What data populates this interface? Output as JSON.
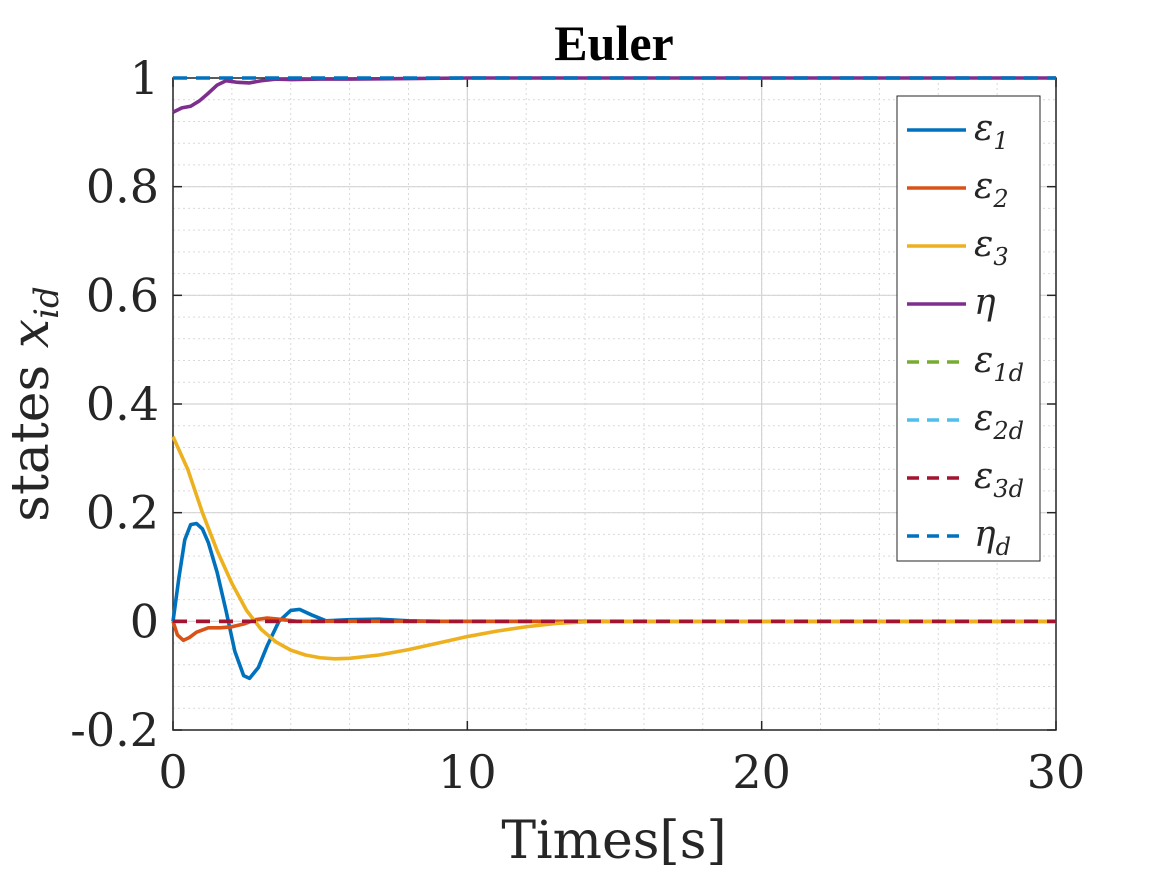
{
  "chart_data": {
    "type": "line",
    "title": "Euler",
    "xlabel": "Times[s]",
    "ylabel_text": "states ",
    "ylabel_math": "x",
    "ylabel_sub": "id",
    "xlim": [
      0,
      30
    ],
    "ylim": [
      -0.2,
      1
    ],
    "xticks": [
      0,
      10,
      20,
      30
    ],
    "xtick_labels": [
      "0",
      "10",
      "20",
      "30"
    ],
    "yticks": [
      -0.2,
      0,
      0.2,
      0.4,
      0.6,
      0.8,
      1
    ],
    "ytick_labels": [
      "-0.2",
      "0",
      "0.2",
      "0.4",
      "0.6",
      "0.8",
      "1"
    ],
    "grid": true,
    "minor_grid": true,
    "legend_position": "top-right",
    "series": [
      {
        "name": "ε",
        "sub": "1",
        "color": "#0072BD",
        "dash": false,
        "points": [
          [
            0,
            0
          ],
          [
            0.2,
            0.08
          ],
          [
            0.4,
            0.15
          ],
          [
            0.6,
            0.178
          ],
          [
            0.8,
            0.18
          ],
          [
            1.0,
            0.17
          ],
          [
            1.2,
            0.145
          ],
          [
            1.5,
            0.09
          ],
          [
            1.8,
            0.02
          ],
          [
            2.1,
            -0.055
          ],
          [
            2.4,
            -0.1
          ],
          [
            2.6,
            -0.105
          ],
          [
            2.9,
            -0.085
          ],
          [
            3.2,
            -0.045
          ],
          [
            3.6,
            0.0
          ],
          [
            4.0,
            0.02
          ],
          [
            4.3,
            0.022
          ],
          [
            4.7,
            0.012
          ],
          [
            5.2,
            0.001
          ],
          [
            6,
            0.003
          ],
          [
            7,
            0.004
          ],
          [
            8,
            0.001
          ],
          [
            9,
            0.0
          ],
          [
            30,
            0.0
          ]
        ]
      },
      {
        "name": "ε",
        "sub": "2",
        "color": "#D95319",
        "dash": false,
        "points": [
          [
            0,
            0
          ],
          [
            0.15,
            -0.025
          ],
          [
            0.35,
            -0.035
          ],
          [
            0.55,
            -0.03
          ],
          [
            0.8,
            -0.02
          ],
          [
            1.2,
            -0.012
          ],
          [
            1.6,
            -0.012
          ],
          [
            2.0,
            -0.01
          ],
          [
            2.4,
            -0.005
          ],
          [
            2.8,
            0.003
          ],
          [
            3.2,
            0.006
          ],
          [
            3.6,
            0.004
          ],
          [
            4.2,
            0.0
          ],
          [
            5,
            0.0
          ],
          [
            30,
            0.0
          ]
        ]
      },
      {
        "name": "ε",
        "sub": "3",
        "color": "#EDB120",
        "dash": false,
        "points": [
          [
            0,
            0.34
          ],
          [
            0.5,
            0.28
          ],
          [
            1.0,
            0.2
          ],
          [
            1.5,
            0.13
          ],
          [
            2.0,
            0.07
          ],
          [
            2.5,
            0.02
          ],
          [
            3.0,
            -0.015
          ],
          [
            3.5,
            -0.038
          ],
          [
            4.0,
            -0.053
          ],
          [
            4.5,
            -0.062
          ],
          [
            5.0,
            -0.067
          ],
          [
            5.5,
            -0.069
          ],
          [
            6.0,
            -0.068
          ],
          [
            7,
            -0.062
          ],
          [
            8,
            -0.052
          ],
          [
            9,
            -0.04
          ],
          [
            10,
            -0.028
          ],
          [
            11,
            -0.018
          ],
          [
            12,
            -0.01
          ],
          [
            13,
            -0.004
          ],
          [
            14,
            -0.001
          ],
          [
            15,
            0.0
          ],
          [
            30,
            0.0
          ]
        ]
      },
      {
        "name": "η",
        "sub": "",
        "color": "#7E2F8E",
        "dash": false,
        "points": [
          [
            0,
            0.937
          ],
          [
            0.3,
            0.945
          ],
          [
            0.6,
            0.948
          ],
          [
            0.9,
            0.958
          ],
          [
            1.2,
            0.972
          ],
          [
            1.5,
            0.987
          ],
          [
            1.8,
            0.995
          ],
          [
            2.2,
            0.992
          ],
          [
            2.6,
            0.991
          ],
          [
            3.0,
            0.995
          ],
          [
            3.5,
            0.998
          ],
          [
            4,
            0.997
          ],
          [
            5,
            0.998
          ],
          [
            6,
            0.998
          ],
          [
            8,
            0.999
          ],
          [
            10,
            1.0
          ],
          [
            30,
            1.0
          ]
        ]
      },
      {
        "name": "ε",
        "sub": "1d",
        "color": "#77AC30",
        "dash": true,
        "points": [
          [
            0,
            0
          ],
          [
            30,
            0
          ]
        ]
      },
      {
        "name": "ε",
        "sub": "2d",
        "color": "#4DBEEE",
        "dash": true,
        "points": [
          [
            0,
            0
          ],
          [
            30,
            0
          ]
        ]
      },
      {
        "name": "ε",
        "sub": "3d",
        "color": "#A2142F",
        "dash": true,
        "points": [
          [
            0,
            0
          ],
          [
            30,
            0
          ]
        ]
      },
      {
        "name": "η",
        "sub": "d",
        "color": "#0072BD",
        "dash": true,
        "points": [
          [
            0,
            1
          ],
          [
            30,
            1
          ]
        ]
      }
    ]
  }
}
